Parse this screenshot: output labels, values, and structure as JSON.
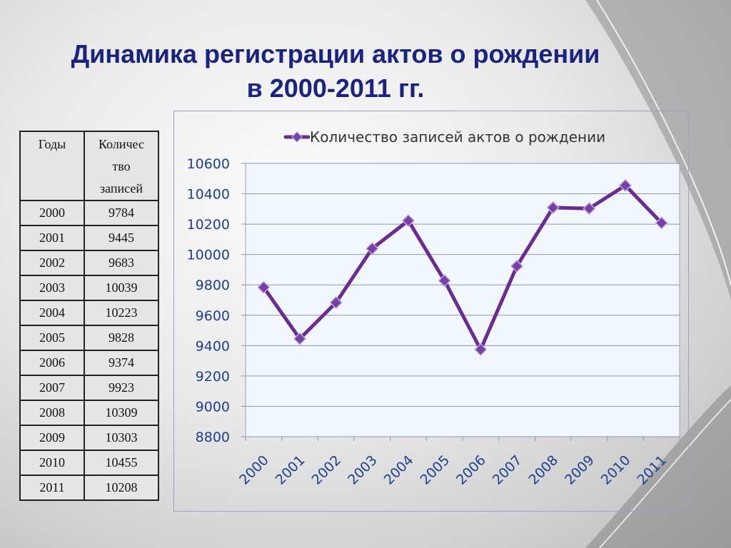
{
  "slide": {
    "title_line1": "Динамика регистрации актов о рождении",
    "title_line2": "в 2000-2011 гг."
  },
  "table": {
    "headers": [
      "Годы",
      "Количес тво записей"
    ],
    "header_count_lines": [
      "Количес",
      "тво",
      "записей"
    ],
    "rows": [
      [
        "2000",
        "9784"
      ],
      [
        "2001",
        "9445"
      ],
      [
        "2002",
        "9683"
      ],
      [
        "2003",
        "10039"
      ],
      [
        "2004",
        "10223"
      ],
      [
        "2005",
        "9828"
      ],
      [
        "2006",
        "9374"
      ],
      [
        "2007",
        "9923"
      ],
      [
        "2008",
        "10309"
      ],
      [
        "2009",
        "10303"
      ],
      [
        "2010",
        "10455"
      ],
      [
        "2011",
        "10208"
      ]
    ]
  },
  "chart_data": {
    "type": "line",
    "categories": [
      "2000",
      "2001",
      "2002",
      "2003",
      "2004",
      "2005",
      "2006",
      "2007",
      "2008",
      "2009",
      "2010",
      "2011"
    ],
    "series": [
      {
        "name": "Количество записей актов о рождении",
        "values": [
          9784,
          9445,
          9683,
          10039,
          10223,
          9828,
          9374,
          9923,
          10309,
          10303,
          10455,
          10208
        ]
      }
    ],
    "yticks": [
      "8800",
      "9000",
      "9200",
      "9400",
      "9600",
      "9800",
      "10000",
      "10200",
      "10400",
      "10600"
    ],
    "ylim": [
      8800,
      10600
    ],
    "grid": true,
    "legend_position": "top",
    "line_color": "#6a2c91",
    "marker_color": "#7b3fa0",
    "axis_label_color": "#1f3f8f"
  }
}
